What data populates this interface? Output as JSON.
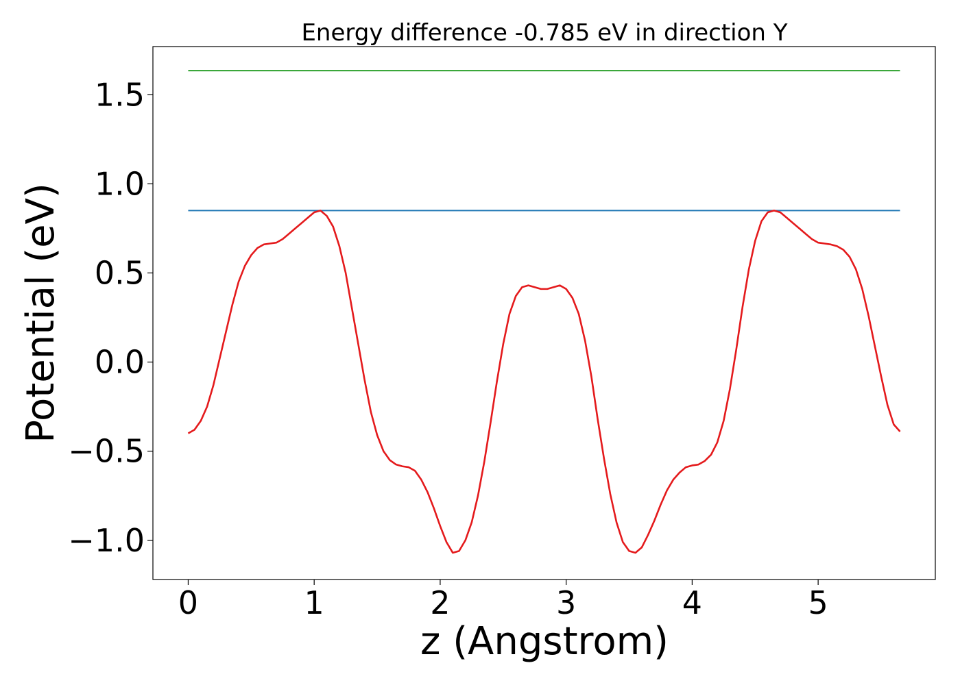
{
  "chart_data": {
    "type": "line",
    "title": "Energy difference -0.785 eV in direction Y",
    "xlabel": "z (Angstrom)",
    "ylabel": "Potential (eV)",
    "xlim": [
      -0.28,
      5.93
    ],
    "ylim": [
      -1.22,
      1.77
    ],
    "grid": false,
    "legend": "none",
    "xticks": [
      0,
      1,
      2,
      3,
      4,
      5
    ],
    "xtick_labels": [
      "0",
      "1",
      "2",
      "3",
      "4",
      "5"
    ],
    "yticks": [
      -1.0,
      -0.5,
      0.0,
      0.5,
      1.0,
      1.5
    ],
    "ytick_labels": [
      "−1.0",
      "−0.5",
      "0.0",
      "0.5",
      "1.0",
      "1.5"
    ],
    "series": [
      {
        "color": "#2ca02c",
        "x": [
          0,
          5.65
        ],
        "y": [
          1.635,
          1.635
        ]
      },
      {
        "color": "#1f77b4",
        "x": [
          0,
          5.65
        ],
        "y": [
          0.85,
          0.85
        ]
      },
      {
        "color": "#e41a1c",
        "x": [
          0.0,
          0.05,
          0.1,
          0.15,
          0.2,
          0.25,
          0.3,
          0.35,
          0.4,
          0.45,
          0.5,
          0.55,
          0.6,
          0.65,
          0.7,
          0.75,
          0.8,
          0.85,
          0.9,
          0.95,
          1.0,
          1.05,
          1.1,
          1.15,
          1.2,
          1.25,
          1.3,
          1.35,
          1.4,
          1.45,
          1.5,
          1.55,
          1.6,
          1.65,
          1.7,
          1.75,
          1.8,
          1.85,
          1.9,
          1.95,
          2.0,
          2.05,
          2.1,
          2.15,
          2.2,
          2.25,
          2.3,
          2.35,
          2.4,
          2.45,
          2.5,
          2.55,
          2.6,
          2.65,
          2.7,
          2.75,
          2.8,
          2.85,
          2.9,
          2.95,
          3.0,
          3.05,
          3.1,
          3.15,
          3.2,
          3.25,
          3.3,
          3.35,
          3.4,
          3.45,
          3.5,
          3.55,
          3.6,
          3.65,
          3.7,
          3.75,
          3.8,
          3.85,
          3.9,
          3.95,
          4.0,
          4.05,
          4.1,
          4.15,
          4.2,
          4.25,
          4.3,
          4.35,
          4.4,
          4.45,
          4.5,
          4.55,
          4.6,
          4.65,
          4.7,
          4.75,
          4.8,
          4.85,
          4.9,
          4.95,
          5.0,
          5.05,
          5.1,
          5.15,
          5.2,
          5.25,
          5.3,
          5.35,
          5.4,
          5.45,
          5.5,
          5.55,
          5.6,
          5.65
        ],
        "y": [
          -0.4,
          -0.38,
          -0.33,
          -0.25,
          -0.13,
          0.02,
          0.17,
          0.32,
          0.45,
          0.54,
          0.6,
          0.64,
          0.66,
          0.665,
          0.67,
          0.69,
          0.72,
          0.75,
          0.78,
          0.81,
          0.84,
          0.85,
          0.82,
          0.76,
          0.65,
          0.5,
          0.3,
          0.1,
          -0.1,
          -0.28,
          -0.41,
          -0.5,
          -0.55,
          -0.575,
          -0.585,
          -0.59,
          -0.61,
          -0.66,
          -0.73,
          -0.82,
          -0.92,
          -1.01,
          -1.07,
          -1.06,
          -1.0,
          -0.9,
          -0.75,
          -0.56,
          -0.34,
          -0.11,
          0.1,
          0.27,
          0.37,
          0.42,
          0.43,
          0.42,
          0.41,
          0.41,
          0.42,
          0.43,
          0.41,
          0.36,
          0.27,
          0.12,
          -0.08,
          -0.32,
          -0.54,
          -0.74,
          -0.9,
          -1.01,
          -1.06,
          -1.07,
          -1.04,
          -0.97,
          -0.89,
          -0.8,
          -0.72,
          -0.66,
          -0.62,
          -0.59,
          -0.58,
          -0.575,
          -0.555,
          -0.52,
          -0.45,
          -0.33,
          -0.15,
          0.07,
          0.31,
          0.52,
          0.68,
          0.79,
          0.84,
          0.85,
          0.84,
          0.81,
          0.78,
          0.75,
          0.72,
          0.69,
          0.67,
          0.665,
          0.66,
          0.65,
          0.63,
          0.59,
          0.52,
          0.41,
          0.26,
          0.09,
          -0.08,
          -0.24,
          -0.35,
          -0.39
        ]
      }
    ]
  }
}
